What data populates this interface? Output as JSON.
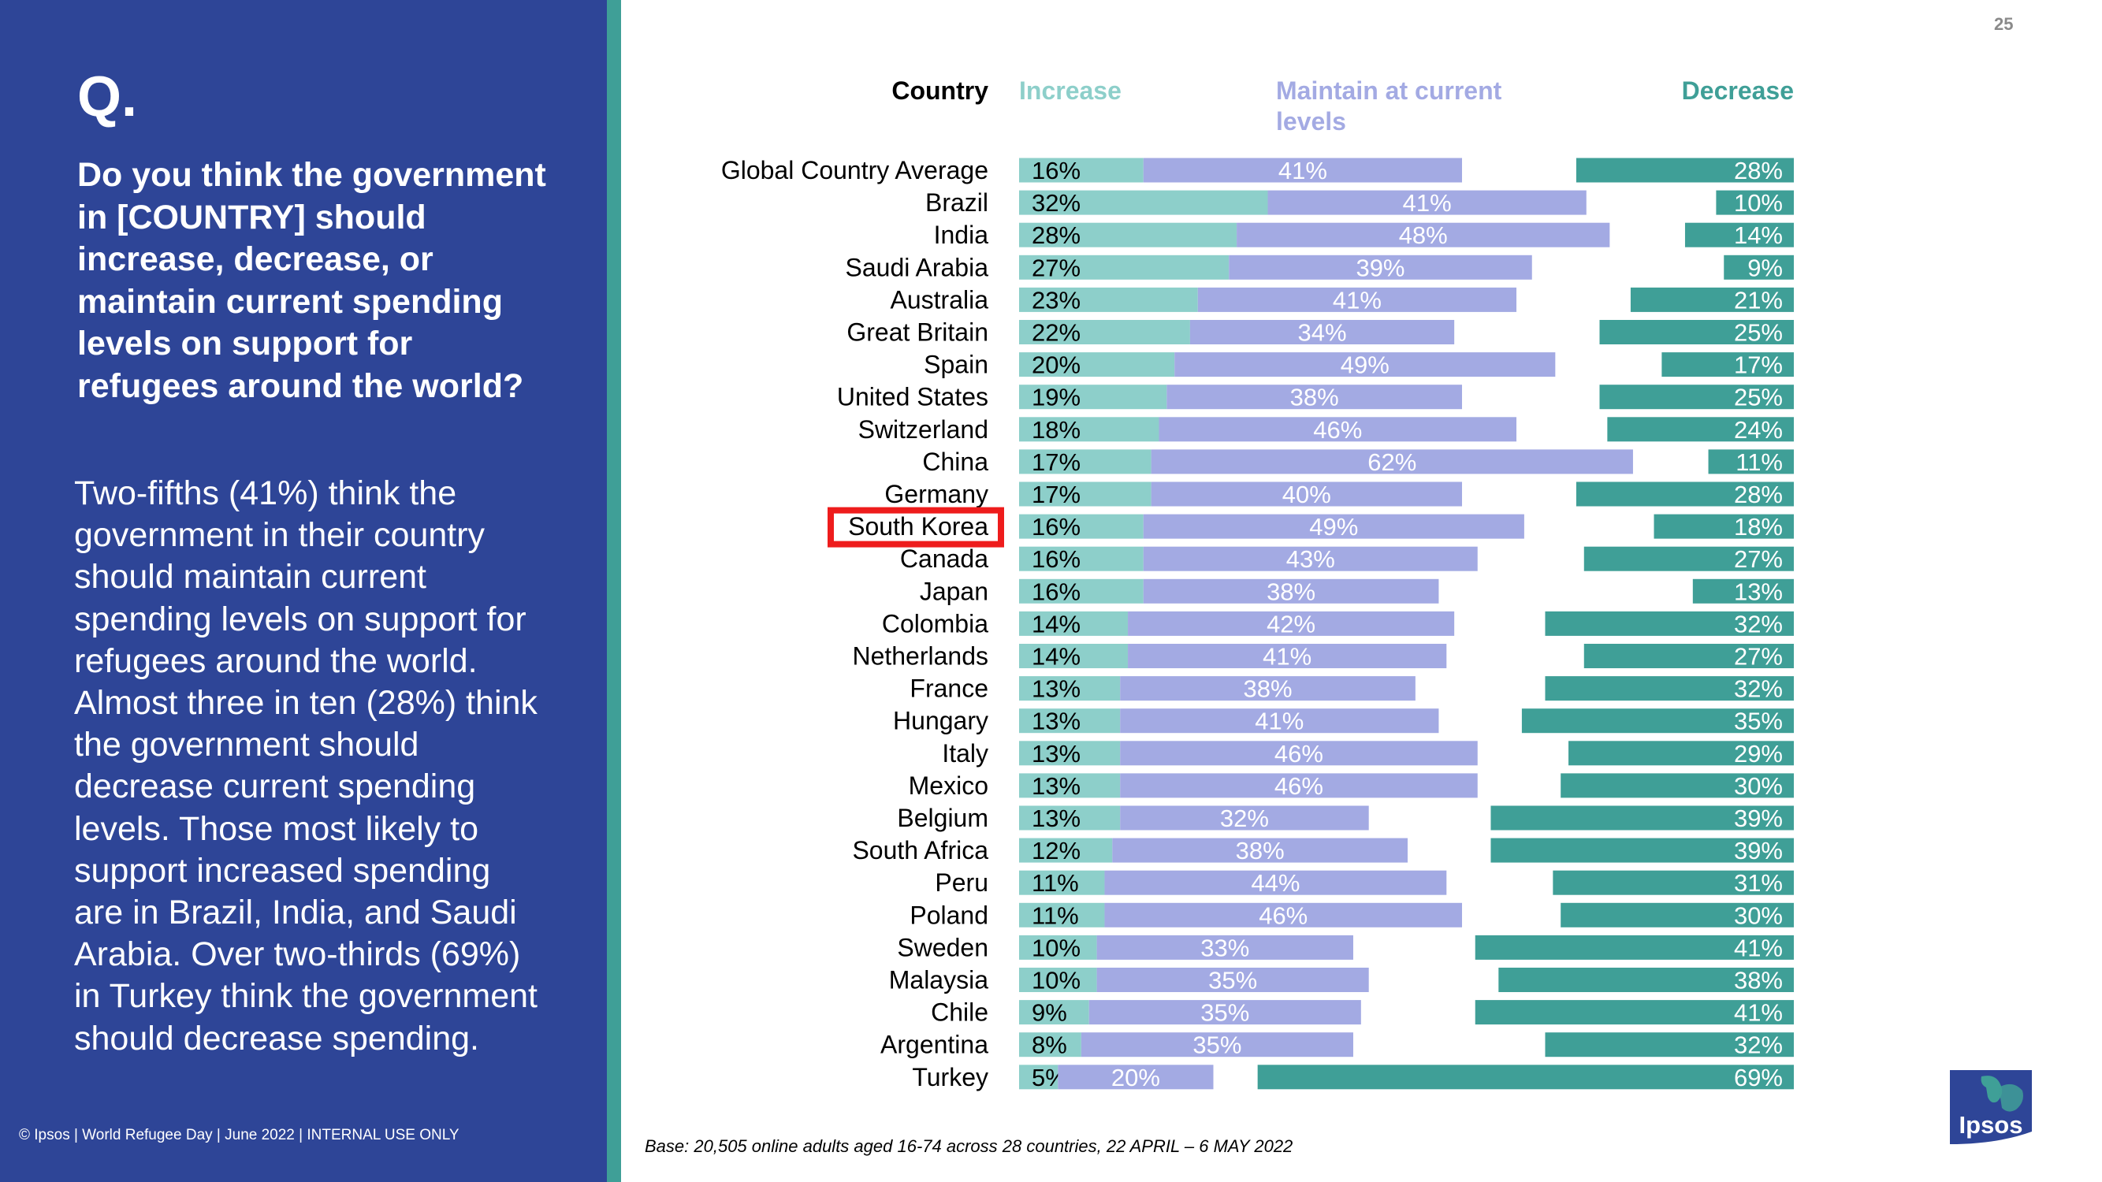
{
  "page": {
    "number": "25"
  },
  "question": {
    "label": "Q.",
    "text": "Do you think the government in [COUNTRY] should increase, decrease, or maintain current spending levels on support for refugees around the world?",
    "summary": "Two-fifths (41%) think the government in their country should maintain current spending levels on support for refugees around the world. Almost three in ten (28%) think the government should decrease current spending levels. Those most likely to support increased spending are in Brazil, India, and Saudi Arabia. Over two-thirds (69%) in Turkey think the government should decrease spending."
  },
  "footer": {
    "copyright": "© Ipsos | World Refugee Day | June 2022 | INTERNAL USE ONLY",
    "base": "Base: 20,505 online adults aged 16-74 across 28 countries,  22 APRIL – 6 MAY 2022",
    "logo_text": "Ipsos"
  },
  "colors": {
    "panel": "#2e4597",
    "stripe": "#3f9f97",
    "increase": "#8dcfca",
    "maintain": "#a3aae3",
    "decrease": "#3f9f97",
    "highlight": "#ee1c1c"
  },
  "chart_data": {
    "type": "bar",
    "orientation": "horizontal",
    "layout": "diverging",
    "highlighted_category": "South Korea",
    "headers": {
      "category": "Country",
      "increase": "Increase",
      "maintain": "Maintain at current levels",
      "decrease": "Decrease"
    },
    "categories": [
      "Global Country Average",
      "Brazil",
      "India",
      "Saudi Arabia",
      "Australia",
      "Great Britain",
      "Spain",
      "United States",
      "Switzerland",
      "China",
      "Germany",
      "South Korea",
      "Canada",
      "Japan",
      "Colombia",
      "Netherlands",
      "France",
      "Hungary",
      "Italy",
      "Mexico",
      "Belgium",
      "South Africa",
      "Peru",
      "Poland",
      "Sweden",
      "Malaysia",
      "Chile",
      "Argentina",
      "Turkey"
    ],
    "series": [
      {
        "name": "Increase",
        "values": [
          16,
          32,
          28,
          27,
          23,
          22,
          20,
          19,
          18,
          17,
          17,
          16,
          16,
          16,
          14,
          14,
          13,
          13,
          13,
          13,
          13,
          12,
          11,
          11,
          10,
          10,
          9,
          8,
          5
        ]
      },
      {
        "name": "Maintain at current levels",
        "values": [
          41,
          41,
          48,
          39,
          41,
          34,
          49,
          38,
          46,
          62,
          40,
          49,
          43,
          38,
          42,
          41,
          38,
          41,
          46,
          46,
          32,
          38,
          44,
          46,
          33,
          35,
          35,
          35,
          20
        ]
      },
      {
        "name": "Decrease",
        "values": [
          28,
          10,
          14,
          9,
          21,
          25,
          17,
          25,
          24,
          11,
          28,
          18,
          27,
          13,
          32,
          27,
          32,
          35,
          29,
          30,
          39,
          39,
          31,
          30,
          41,
          38,
          41,
          32,
          69
        ]
      }
    ],
    "value_suffix": "%"
  }
}
